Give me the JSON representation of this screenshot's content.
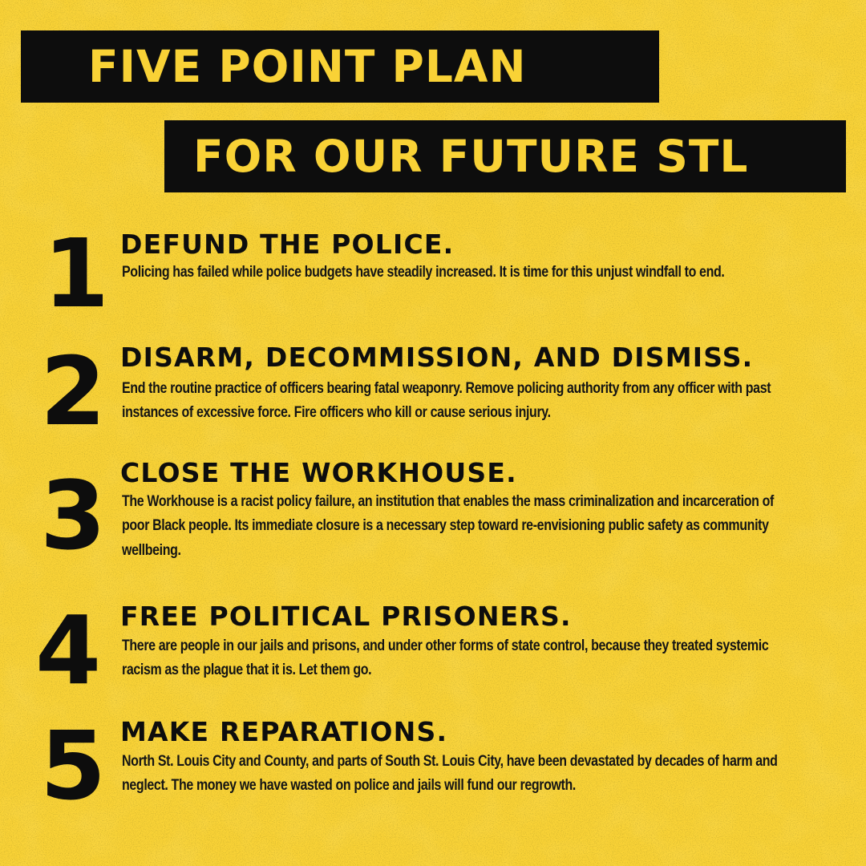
{
  "poster": {
    "title_line_1": "FIVE POINT PLAN",
    "title_line_2": "FOR OUR FUTURE STL",
    "colors": {
      "background": "#f9d236",
      "ink": "#0d0d0d"
    }
  },
  "points": [
    {
      "number": "1",
      "heading": "DEFUND THE POLICE.",
      "body": "Policing has failed while police budgets have steadily increased. It is time for this unjust windfall to end."
    },
    {
      "number": "2",
      "heading": "DISARM, DECOMMISSION, AND DISMISS.",
      "body": "End the routine practice of officers bearing fatal weaponry. Remove policing authority from any officer with past instances of excessive force. Fire officers who kill or cause serious injury."
    },
    {
      "number": "3",
      "heading": "CLOSE THE WORKHOUSE.",
      "body": "The Workhouse is a racist policy failure, an institution that enables the mass criminalization and incarceration of poor Black people. Its immediate closure is a necessary step toward re-envisioning public safety as community wellbeing."
    },
    {
      "number": "4",
      "heading": "FREE POLITICAL PRISONERS.",
      "body": "There are people in our jails and prisons, and under other forms of state control, because they treated systemic racism as the plague that it is. Let them go."
    },
    {
      "number": "5",
      "heading": "MAKE REPARATIONS.",
      "body": "North St. Louis City and County, and parts of South St. Louis City, have been devastated by decades of harm and neglect. The money we have wasted on police and jails will fund our regrowth."
    }
  ]
}
